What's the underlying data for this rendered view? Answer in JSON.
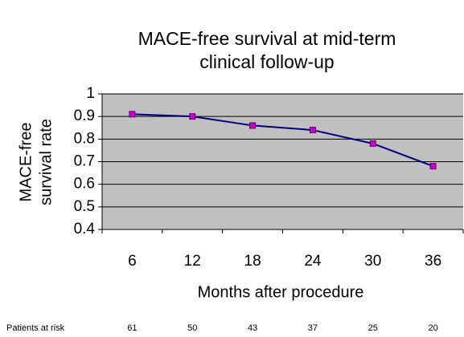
{
  "chart_data": {
    "type": "line",
    "title": [
      "MACE-free survival at mid-term",
      "clinical follow-up"
    ],
    "y_label": [
      "MACE-free",
      "survival rate"
    ],
    "x_label": "Months after procedure",
    "categories": [
      "6",
      "12",
      "18",
      "24",
      "30",
      "36"
    ],
    "series": [
      {
        "name": "MACE-free survival",
        "color": "#000080",
        "marker_color": "#cc00cc",
        "values": [
          0.91,
          0.9,
          0.86,
          0.84,
          0.78,
          0.68
        ]
      }
    ],
    "ylim": [
      0.4,
      1
    ],
    "yticks": [
      0.4,
      0.5,
      0.6,
      0.7,
      0.8,
      0.9,
      1
    ],
    "grid": true,
    "plot_background": "#c0c0c0",
    "patients_at_risk": {
      "label": "Patients at risk",
      "values": [
        61,
        50,
        43,
        37,
        25,
        20
      ]
    }
  }
}
